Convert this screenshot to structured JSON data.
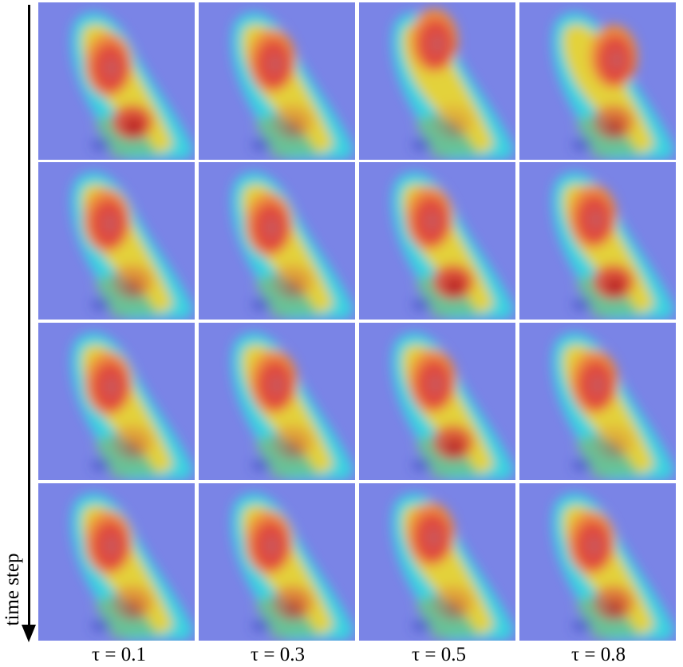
{
  "figure": {
    "axis_label": "time step",
    "column_labels": [
      "τ = 0.1",
      "τ = 0.3",
      "τ = 0.5",
      "τ = 0.8"
    ],
    "rows": 4,
    "cols": 4,
    "colors": {
      "background": "#7a84e6",
      "cold": "#6f7be0",
      "cyan": "#39d3e0",
      "green": "#6fbf8a",
      "yellow": "#e3d23a",
      "orange": "#ee8a3c",
      "red": "#e04a3e",
      "dark_red": "#b0121c"
    }
  }
}
